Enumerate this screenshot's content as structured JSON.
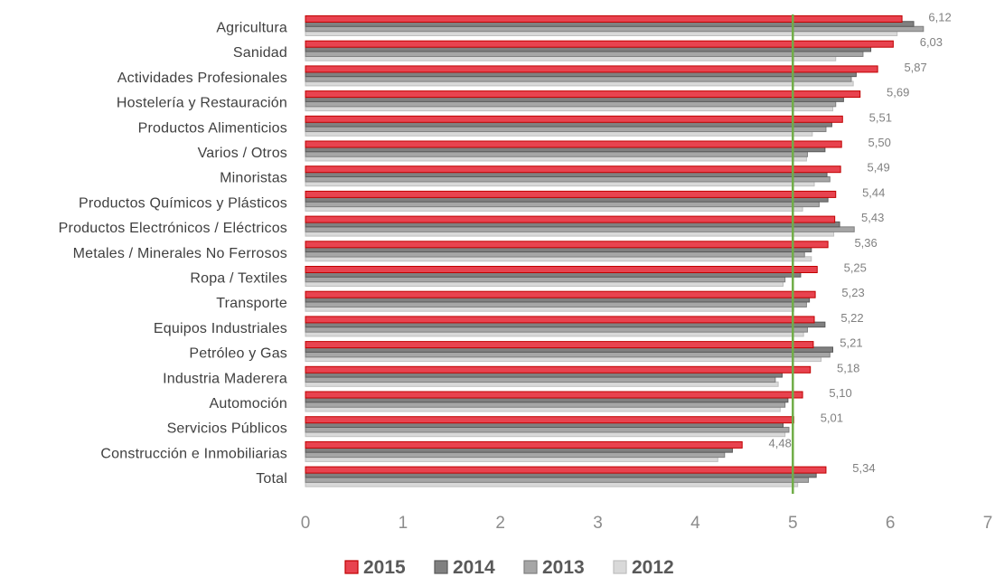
{
  "chart_data": {
    "type": "bar",
    "orientation": "horizontal",
    "categories": [
      "Agricultura",
      "Sanidad",
      "Actividades Profesionales",
      "Hostelería y Restauración",
      "Productos Alimenticios",
      "Varios / Otros",
      "Minoristas",
      "Productos Químicos y Plásticos",
      "Productos Electrónicos / Eléctricos",
      "Metales / Minerales No Ferrosos",
      "Ropa / Textiles",
      "Transporte",
      "Equipos Industriales",
      "Petróleo y Gas",
      "Industria Maderera",
      "Automoción",
      "Servicios Públicos",
      "Construcción e Inmobiliarias",
      "Total"
    ],
    "series": [
      {
        "name": "2015",
        "color": "#e8434f",
        "stroke": "#c00000",
        "values": [
          6.12,
          6.03,
          5.87,
          5.69,
          5.51,
          5.5,
          5.49,
          5.44,
          5.43,
          5.36,
          5.25,
          5.23,
          5.22,
          5.21,
          5.18,
          5.1,
          5.01,
          4.48,
          5.34
        ]
      },
      {
        "name": "2014",
        "color": "#808080",
        "stroke": "#595959",
        "values": [
          6.24,
          5.8,
          5.65,
          5.52,
          5.4,
          5.33,
          5.35,
          5.36,
          5.48,
          5.19,
          5.08,
          5.17,
          5.33,
          5.41,
          4.89,
          4.95,
          4.9,
          4.38,
          5.24
        ]
      },
      {
        "name": "2013",
        "color": "#a6a6a6",
        "stroke": "#7f7f7f",
        "values": [
          6.34,
          5.72,
          5.6,
          5.44,
          5.34,
          5.15,
          5.38,
          5.27,
          5.63,
          5.12,
          4.92,
          5.14,
          5.15,
          5.38,
          4.82,
          4.92,
          4.96,
          4.3,
          5.16
        ]
      },
      {
        "name": "2012",
        "color": "#d9d9d9",
        "stroke": "#bfbfbf",
        "values": [
          6.07,
          5.44,
          5.62,
          5.41,
          5.2,
          5.14,
          5.22,
          5.1,
          5.42,
          5.19,
          4.9,
          5.01,
          5.11,
          5.29,
          4.85,
          4.87,
          4.92,
          4.23,
          5.05
        ]
      }
    ],
    "data_labels_series": "2015",
    "data_labels": [
      "6,12",
      "6,03",
      "5,87",
      "5,69",
      "5,51",
      "5,50",
      "5,49",
      "5,44",
      "5,43",
      "5,36",
      "5,25",
      "5,23",
      "5,22",
      "5,21",
      "5,18",
      "5,10",
      "5,01",
      "4,48",
      "5,34"
    ],
    "xlim": [
      0,
      7
    ],
    "x_ticks": [
      "0",
      "1",
      "2",
      "3",
      "4",
      "5",
      "6",
      "7"
    ],
    "reference_line": {
      "value": 5,
      "color": "#70ad47"
    },
    "grid": false,
    "legend_position": "bottom",
    "title": "",
    "xlabel": "",
    "ylabel": ""
  }
}
